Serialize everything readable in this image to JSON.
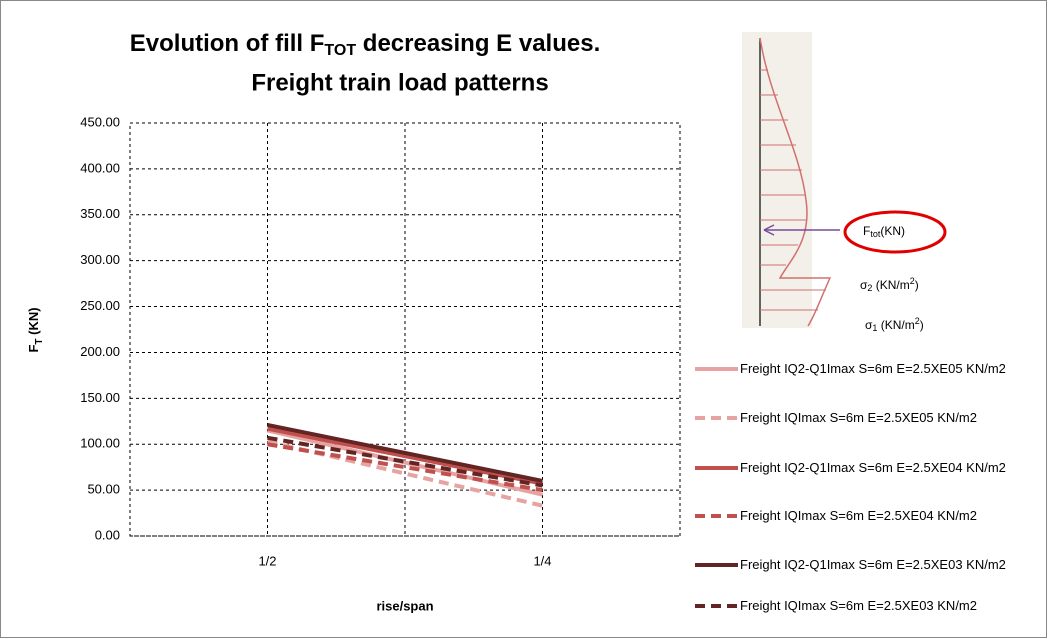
{
  "chart_data": {
    "type": "line",
    "title": [
      "Evolution of fill F",
      "TOT",
      " decreasing E values."
    ],
    "subtitle": "Freight train load patterns",
    "y_label": [
      "F",
      "T",
      " (KN)"
    ],
    "x_label": "rise/span",
    "x": [
      1,
      3
    ],
    "xlim": [
      0,
      4
    ],
    "xticks": [
      {
        "value": 1,
        "label": "1/2"
      },
      {
        "value": 3,
        "label": "1/4"
      }
    ],
    "ylim": [
      0,
      450
    ],
    "yticks": [
      {
        "value": 0,
        "label": "0.00"
      },
      {
        "value": 50,
        "label": "50.00"
      },
      {
        "value": 100,
        "label": "100.00"
      },
      {
        "value": 150,
        "label": "150.00"
      },
      {
        "value": 200,
        "label": "200.00"
      },
      {
        "value": 250,
        "label": "250.00"
      },
      {
        "value": 300,
        "label": "300.00"
      },
      {
        "value": 350,
        "label": "350.00"
      },
      {
        "value": 400,
        "label": "400.00"
      },
      {
        "value": 450,
        "label": "450.00"
      }
    ],
    "grid": true,
    "series": [
      {
        "name": "Freight IQ2-Q1Imax S=6m E=2.5XE05 KN/m2",
        "color": "#e6a3a2",
        "dashed": false,
        "values": [
          115,
          45
        ]
      },
      {
        "name": "Freight IQImax S=6m E=2.5XE05 KN/m2",
        "color": "#e6a3a2",
        "dashed": true,
        "values": [
          103,
          33
        ]
      },
      {
        "name": "Freight IQ2-Q1Imax S=6m E=2.5XE04 KN/m2",
        "color": "#c0504d",
        "dashed": false,
        "values": [
          117,
          57
        ]
      },
      {
        "name": "Freight IQImax S=6m E=2.5XE04 KN/m2",
        "color": "#c0504d",
        "dashed": true,
        "values": [
          100,
          50
        ]
      },
      {
        "name": "Freight IQ2-Q1Imax S=6m E=2.5XE03 KN/m2",
        "color": "#632523",
        "dashed": false,
        "values": [
          121,
          60
        ]
      },
      {
        "name": "Freight IQImax S=6m E=2.5XE03 KN/m2",
        "color": "#632523",
        "dashed": true,
        "values": [
          107,
          55
        ]
      }
    ]
  },
  "figure_annotations": {
    "force": [
      "F",
      "tot",
      "(KN)"
    ],
    "sigma2": [
      "σ",
      "2",
      " (KN/m",
      "2",
      ")"
    ],
    "sigma1": [
      "σ",
      "1",
      " (KN/m",
      "2",
      ")"
    ]
  }
}
